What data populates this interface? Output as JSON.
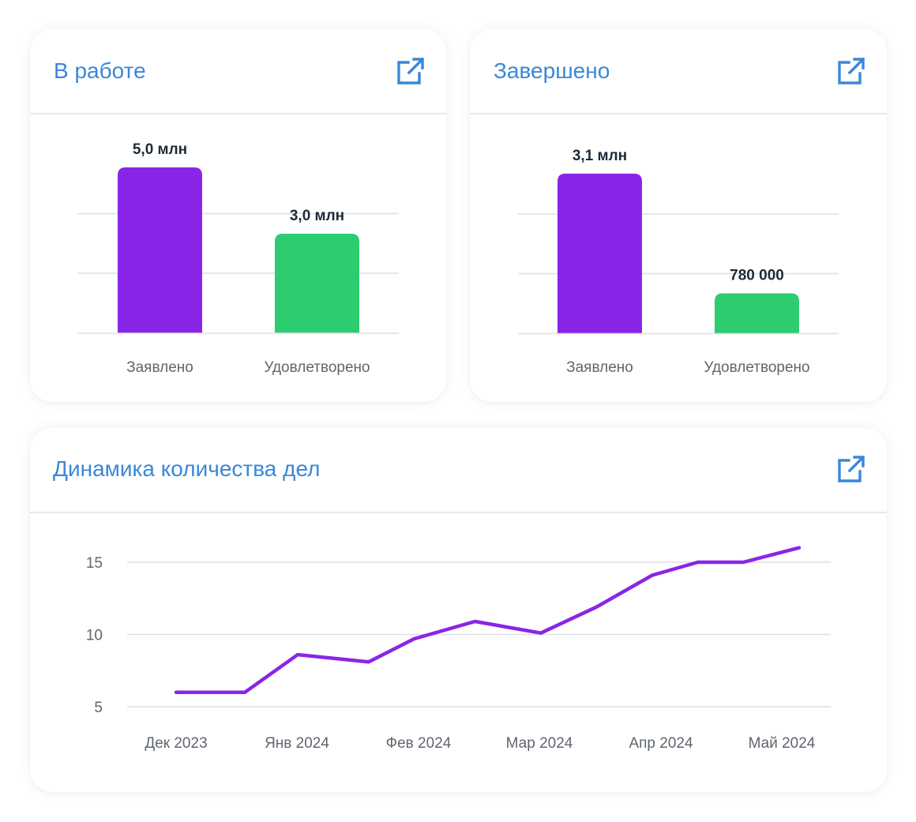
{
  "colors": {
    "accent": "#3a87d8",
    "claimed": "#8a25e8",
    "satisfied": "#2ecc71",
    "line": "#8a25e8",
    "grid": "#dde0e4"
  },
  "cards": {
    "in_work": {
      "title": "В работе",
      "icon": "open-external-icon",
      "chart_data": {
        "type": "bar",
        "categories": [
          "Заявлено",
          "Удовлетворено"
        ],
        "values": [
          5000000,
          3000000
        ],
        "value_labels": [
          "5,0 млн",
          "3,0 млн"
        ],
        "ylim": [
          0,
          6000000
        ],
        "grid": true
      }
    },
    "completed": {
      "title": "Завершено",
      "icon": "open-external-icon",
      "chart_data": {
        "type": "bar",
        "categories": [
          "Заявлено",
          "Удовлетворено"
        ],
        "values": [
          3100000,
          780000
        ],
        "value_labels": [
          "3,1 млн",
          "780 000"
        ],
        "ylim": [
          0,
          4000000
        ],
        "grid": true
      }
    },
    "dynamics": {
      "title": "Динамика количества дел",
      "icon": "open-external-icon",
      "chart_data": {
        "type": "line",
        "x_ticks": [
          "Дек 2023",
          "Янв 2024",
          "Фев 2024",
          "Мар 2024",
          "Апр 2024",
          "Май 2024"
        ],
        "y_ticks": [
          "5",
          "10",
          "15"
        ],
        "ylim": [
          5,
          15
        ],
        "x": [
          0,
          0.68,
          1.2,
          1.9,
          2.35,
          2.95,
          3.6,
          4.15,
          4.7,
          5.15,
          5.6,
          6.15
        ],
        "values": [
          6,
          6,
          8.6,
          8.1,
          9.7,
          10.9,
          10.1,
          11.9,
          14.1,
          15,
          15,
          16
        ],
        "series": [
          {
            "values": [
              6,
              6,
              8.6,
              8.1,
              9.7,
              10.9,
              10.1,
              11.9,
              14.1,
              15,
              15,
              16
            ]
          }
        ],
        "grid": true
      }
    }
  }
}
